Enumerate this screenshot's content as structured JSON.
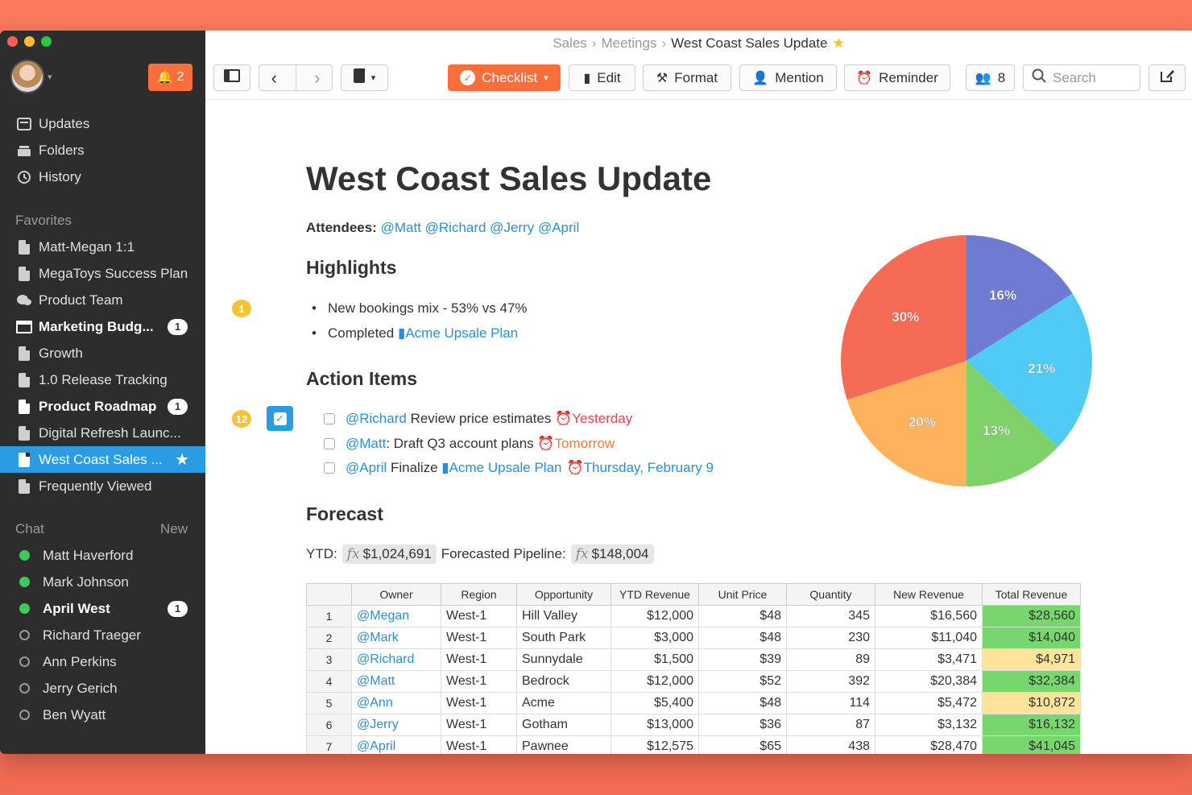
{
  "sidebar": {
    "notifications": "2",
    "nav": [
      {
        "label": "Updates",
        "icon": "updates-icon"
      },
      {
        "label": "Folders",
        "icon": "folders-icon"
      },
      {
        "label": "History",
        "icon": "history-icon"
      }
    ],
    "favorites_heading": "Favorites",
    "favorites": [
      {
        "label": "Matt-Megan 1:1",
        "count": null
      },
      {
        "label": "MegaToys Success Plan",
        "count": null
      },
      {
        "label": "Product Team",
        "count": null
      },
      {
        "label": "Marketing Budg...",
        "count": "1"
      },
      {
        "label": "Growth",
        "count": null
      },
      {
        "label": "1.0 Release Tracking",
        "count": null
      },
      {
        "label": "Product Roadmap",
        "count": "1"
      },
      {
        "label": "Digital Refresh Launc...",
        "count": null
      },
      {
        "label": "West Coast Sales ...",
        "count": null
      },
      {
        "label": "Frequently Viewed",
        "count": null
      }
    ],
    "chat_heading": "Chat",
    "chat_new": "New",
    "chat": [
      {
        "label": "Matt Haverford",
        "online": true,
        "count": null
      },
      {
        "label": "Mark Johnson",
        "online": true,
        "count": null
      },
      {
        "label": "April West",
        "online": true,
        "count": "1"
      },
      {
        "label": "Richard Traeger",
        "online": false,
        "count": null
      },
      {
        "label": "Ann Perkins",
        "online": false,
        "count": null
      },
      {
        "label": "Jerry Gerich",
        "online": false,
        "count": null
      },
      {
        "label": "Ben Wyatt",
        "online": false,
        "count": null
      }
    ]
  },
  "breadcrumb": {
    "a": "Sales",
    "b": "Meetings",
    "current": "West Coast Sales Update"
  },
  "toolbar": {
    "checklist": "Checklist",
    "edit": "Edit",
    "format": "Format",
    "mention": "Mention",
    "reminder": "Reminder",
    "members": "8",
    "search_placeholder": "Search"
  },
  "doc": {
    "title": "West Coast Sales Update",
    "attendees_label": "Attendees:",
    "attendees": "@Matt @Richard @Jerry @April",
    "highlights_heading": "Highlights",
    "highlight_badge": "1",
    "highlight1": "New bookings mix - 53% vs 47%",
    "highlight2_prefix": "Completed",
    "highlight2_link": "Acme Upsale Plan",
    "action_heading": "Action Items",
    "action_badge": "12",
    "actions": [
      {
        "mention": "@Richard",
        "text": " Review price estimates ",
        "due": "Yesterday"
      },
      {
        "mention": "@Matt",
        "text": ": Draft Q3 account plans ",
        "due": "Tomorrow"
      },
      {
        "mention": "@April",
        "text": " Finalize ",
        "link": "Acme Upsale Plan",
        "due": "Thursday, February 9"
      }
    ],
    "forecast_heading": "Forecast",
    "ytd_label": "YTD:",
    "ytd_value": "$1,024,691",
    "pipeline_label": "Forecasted Pipeline:",
    "pipeline_value": "$148,004"
  },
  "table": {
    "headers": [
      "Owner",
      "Region",
      "Opportunity",
      "YTD Revenue",
      "Unit Price",
      "Quantity",
      "New Revenue",
      "Total Revenue"
    ],
    "rows": [
      [
        "1",
        "@Megan",
        "West-1",
        "Hill Valley",
        "$12,000",
        "$48",
        "345",
        "$16,560",
        "$28,560"
      ],
      [
        "2",
        "@Mark",
        "West-1",
        "South Park",
        "$3,000",
        "$48",
        "230",
        "$11,040",
        "$14,040"
      ],
      [
        "3",
        "@Richard",
        "West-1",
        "Sunnydale",
        "$1,500",
        "$39",
        "89",
        "$3,471",
        "$4,971"
      ],
      [
        "4",
        "@Matt",
        "West-1",
        "Bedrock",
        "$12,000",
        "$52",
        "392",
        "$20,384",
        "$32,384"
      ],
      [
        "5",
        "@Ann",
        "West-1",
        "Acme",
        "$5,400",
        "$48",
        "114",
        "$5,472",
        "$10,872"
      ],
      [
        "6",
        "@Jerry",
        "West-1",
        "Gotham",
        "$13,000",
        "$36",
        "87",
        "$3,132",
        "$16,132"
      ],
      [
        "7",
        "@April",
        "West-1",
        "Pawnee",
        "$12,575",
        "$65",
        "438",
        "$28,470",
        "$41,045"
      ]
    ],
    "total_colors": [
      "green",
      "green",
      "yellow",
      "green",
      "yellow",
      "green",
      "green"
    ]
  },
  "chart_data": {
    "type": "pie",
    "values": [
      16,
      21,
      13,
      20,
      30
    ],
    "labels": [
      "16%",
      "21%",
      "13%",
      "20%",
      "30%"
    ],
    "colors": [
      "#6f7bd2",
      "#4fcbf6",
      "#7fd16a",
      "#fdb25b",
      "#f56b56"
    ]
  }
}
